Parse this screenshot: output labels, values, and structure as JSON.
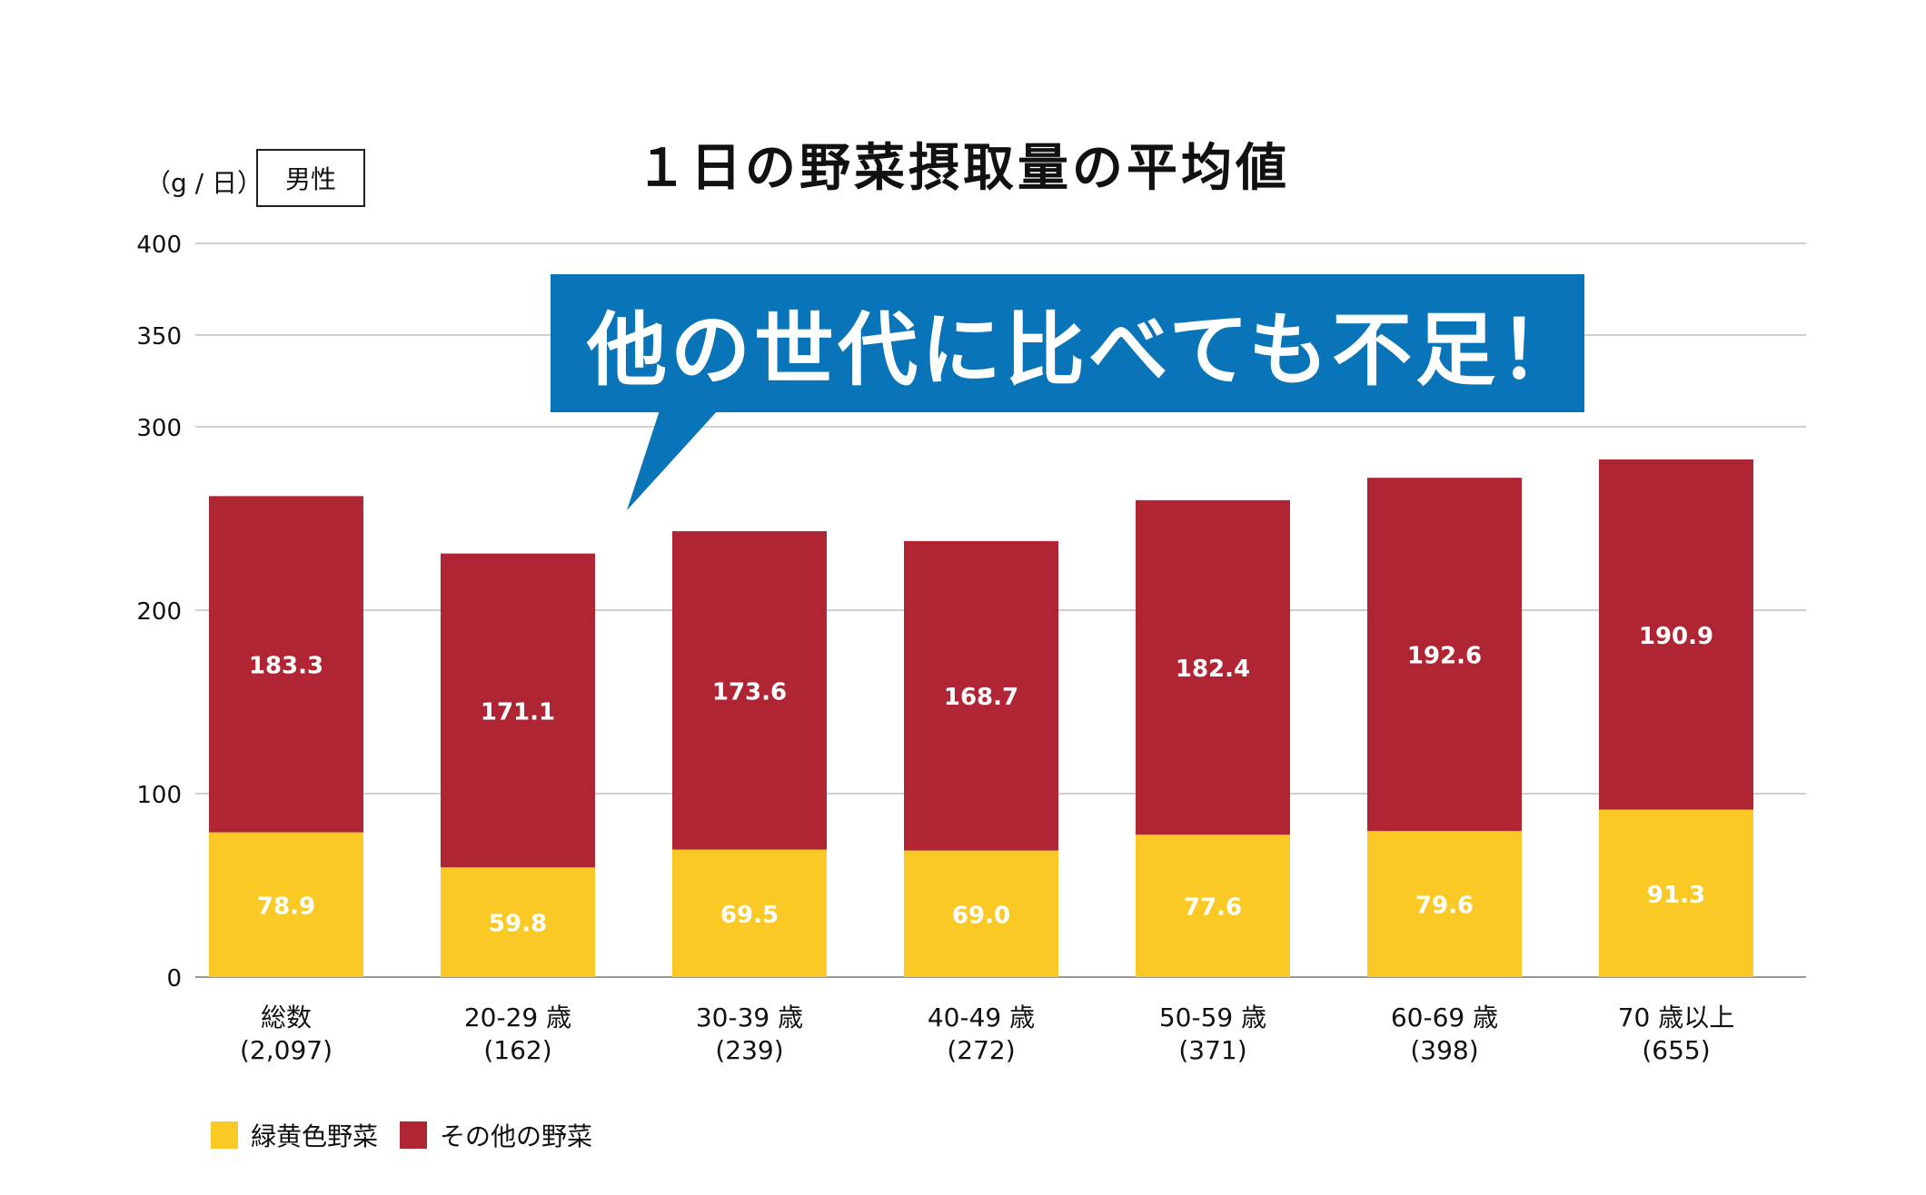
{
  "unit_label": "（g / 日）",
  "filter_badge": "男性",
  "callout_text": "他の世代に比べても不足！",
  "colors": {
    "green_yellow": "#fbc925",
    "other": "#b02533",
    "callout": "#0a74b8",
    "grid": "#cfcfcf"
  },
  "chart_data": {
    "type": "bar",
    "stacked": true,
    "title": "１日の野菜摂取量の平均値",
    "ylabel": "（g / 日）",
    "ylim": [
      0,
      400
    ],
    "yticks": [
      0,
      100,
      200,
      300,
      350,
      400
    ],
    "categories": [
      "総数",
      "20-29 歳",
      "30-39 歳",
      "40-49 歳",
      "50-59 歳",
      "60-69 歳",
      "70 歳以上"
    ],
    "category_counts": [
      "(2,097)",
      "(162)",
      "(239)",
      "(272)",
      "(371)",
      "(398)",
      "(655)"
    ],
    "series": [
      {
        "name": "緑黄色野菜",
        "color": "#fbc925",
        "values": [
          78.9,
          59.8,
          69.5,
          69.0,
          77.6,
          79.6,
          91.3
        ]
      },
      {
        "name": "その他の野菜",
        "color": "#b02533",
        "values": [
          183.3,
          171.1,
          173.6,
          168.7,
          182.4,
          192.6,
          190.9
        ]
      }
    ],
    "legend": "bottom-left",
    "grid": true
  }
}
